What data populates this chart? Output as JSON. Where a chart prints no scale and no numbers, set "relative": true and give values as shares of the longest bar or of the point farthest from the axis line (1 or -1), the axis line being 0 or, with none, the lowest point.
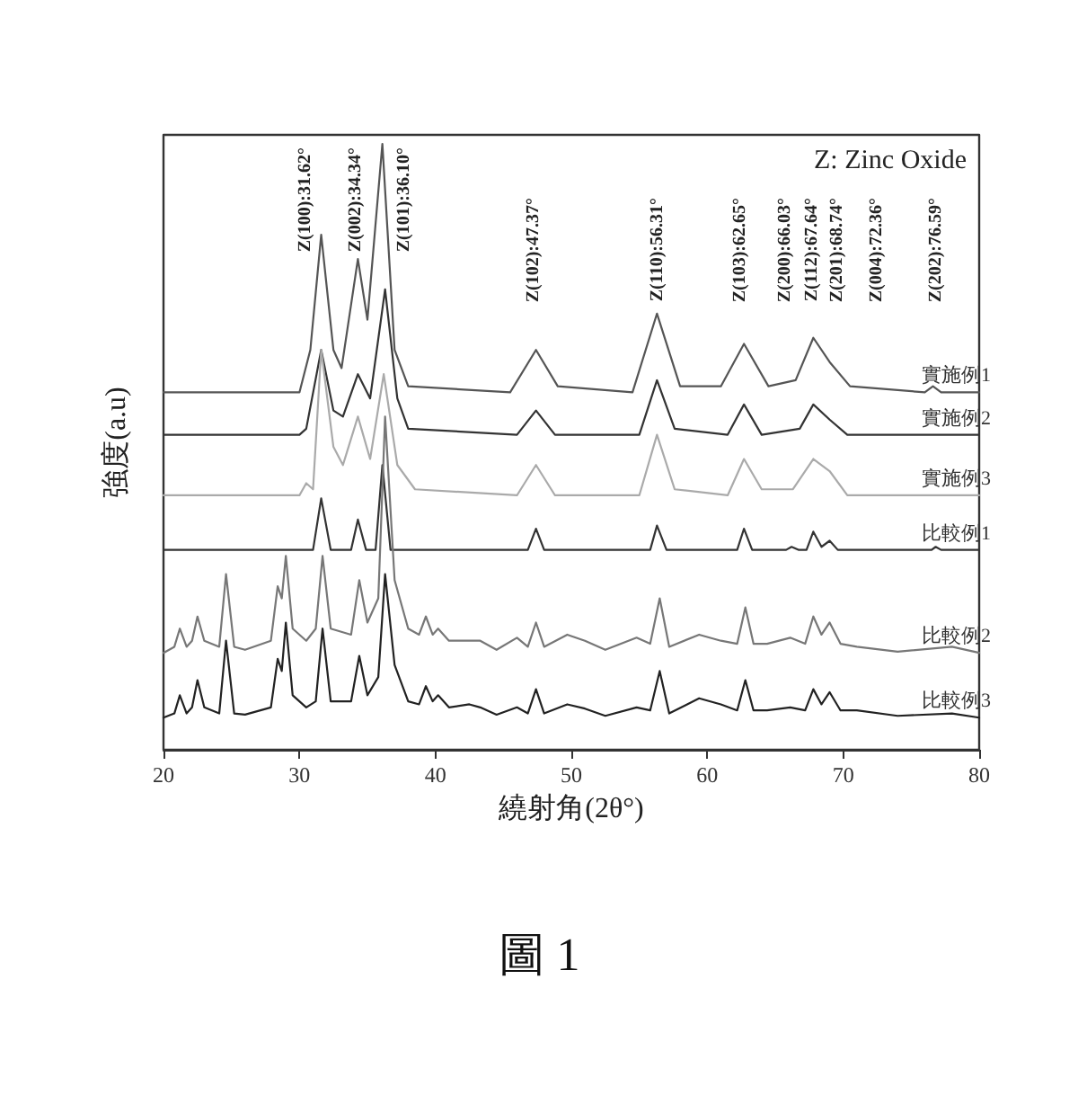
{
  "chart_data": {
    "type": "line",
    "relative": true,
    "xlabel": "繞射角(2θ°)",
    "ylabel": "強度(a.u)",
    "xlim": [
      20,
      80
    ],
    "xticks": [
      20,
      30,
      40,
      50,
      60,
      70,
      80
    ],
    "tick_labels": "x",
    "grid": false,
    "legend": false,
    "marker": "none",
    "line_style": "solid",
    "annotations": [
      "Z(100):31.62°",
      "Z(002):34.34°",
      "Z(101):36.10°",
      "Z(102):47.37°",
      "Z(110):56.31°",
      "Z(103):62.65°",
      "Z(200):66.03°",
      "Z(112):67.64°",
      "Z(201):68.74°",
      "Z(004):72.36°",
      "Z(202):76.59°",
      "Z: Zinc Oxide",
      "圖 1"
    ],
    "series": [
      {
        "name": "實施例1",
        "color": "#555555",
        "x": [
          20,
          30,
          30.8,
          31.6,
          32.5,
          33.1,
          34.3,
          35.0,
          36.1,
          37.0,
          38,
          45.5,
          47.4,
          49,
          54.5,
          56.3,
          58,
          61,
          62.7,
          64.5,
          66.5,
          67.8,
          69,
          70.5,
          76,
          76.6,
          77.2,
          80
        ],
        "values": [
          0.59,
          0.59,
          0.66,
          0.85,
          0.66,
          0.63,
          0.81,
          0.71,
          1.0,
          0.66,
          0.6,
          0.59,
          0.66,
          0.6,
          0.59,
          0.72,
          0.6,
          0.6,
          0.67,
          0.6,
          0.61,
          0.68,
          0.64,
          0.6,
          0.59,
          0.6,
          0.59,
          0.59
        ]
      },
      {
        "name": "實施例2",
        "color": "#333333",
        "x": [
          20,
          30,
          30.5,
          31.6,
          32.5,
          33.2,
          34.3,
          35.2,
          36.3,
          37.2,
          38,
          46,
          47.4,
          48.8,
          55,
          56.3,
          57.6,
          61.5,
          62.7,
          64,
          66.8,
          67.8,
          69,
          70.3,
          80
        ],
        "values": [
          0.52,
          0.52,
          0.53,
          0.66,
          0.56,
          0.55,
          0.62,
          0.58,
          0.76,
          0.58,
          0.53,
          0.52,
          0.56,
          0.52,
          0.52,
          0.61,
          0.53,
          0.52,
          0.57,
          0.52,
          0.53,
          0.57,
          0.545,
          0.52,
          0.52
        ]
      },
      {
        "name": "實施例3",
        "color": "#aaaaaa",
        "x": [
          20,
          30,
          30.5,
          31,
          31.6,
          32.5,
          33.2,
          34.3,
          35.2,
          36.2,
          37.2,
          38.5,
          46,
          47.4,
          48.8,
          55,
          56.3,
          57.6,
          61.5,
          62.7,
          64,
          66.3,
          67.8,
          69,
          70.3,
          80
        ],
        "values": [
          0.42,
          0.42,
          0.44,
          0.43,
          0.66,
          0.5,
          0.47,
          0.55,
          0.48,
          0.62,
          0.47,
          0.43,
          0.42,
          0.47,
          0.42,
          0.42,
          0.52,
          0.43,
          0.42,
          0.48,
          0.43,
          0.43,
          0.48,
          0.46,
          0.42,
          0.42
        ]
      },
      {
        "name": "比較例1",
        "color": "#333333",
        "x": [
          20,
          31,
          31.6,
          32.3,
          33.8,
          34.3,
          34.9,
          35.6,
          36.1,
          36.7,
          37.5,
          46.8,
          47.4,
          48,
          55.8,
          56.3,
          57,
          62.2,
          62.7,
          63.3,
          65.8,
          66.2,
          66.7,
          67.3,
          67.8,
          68.4,
          69,
          69.6,
          76.5,
          76.8,
          77.2,
          80
        ],
        "values": [
          0.33,
          0.33,
          0.415,
          0.33,
          0.33,
          0.38,
          0.33,
          0.33,
          0.47,
          0.33,
          0.33,
          0.33,
          0.365,
          0.33,
          0.33,
          0.37,
          0.33,
          0.33,
          0.365,
          0.33,
          0.33,
          0.335,
          0.33,
          0.33,
          0.36,
          0.335,
          0.345,
          0.33,
          0.33,
          0.335,
          0.33,
          0.33
        ]
      },
      {
        "name": "比較例2",
        "color": "#777777",
        "x": [
          20,
          20.8,
          21.2,
          21.7,
          22.1,
          22.5,
          23,
          24.1,
          24.6,
          25.2,
          26,
          27.9,
          28.4,
          28.7,
          29.0,
          29.5,
          30.5,
          31.2,
          31.7,
          32.3,
          33.8,
          34.4,
          35,
          35.8,
          36.3,
          37,
          38,
          38.8,
          39.3,
          39.8,
          40.2,
          41,
          42.5,
          43.3,
          44.5,
          46,
          46.8,
          47.4,
          48,
          49.7,
          51,
          52.5,
          54.8,
          55.8,
          56.5,
          57.2,
          59.4,
          61,
          62.2,
          62.8,
          63.4,
          64.4,
          66.1,
          67.2,
          67.8,
          68.4,
          69,
          69.8,
          71,
          74,
          78,
          80
        ],
        "values": [
          0.16,
          0.17,
          0.2,
          0.17,
          0.18,
          0.22,
          0.18,
          0.17,
          0.29,
          0.17,
          0.165,
          0.18,
          0.27,
          0.25,
          0.32,
          0.2,
          0.18,
          0.2,
          0.32,
          0.2,
          0.19,
          0.28,
          0.21,
          0.25,
          0.55,
          0.28,
          0.2,
          0.19,
          0.22,
          0.19,
          0.2,
          0.18,
          0.18,
          0.18,
          0.165,
          0.185,
          0.17,
          0.21,
          0.17,
          0.19,
          0.18,
          0.165,
          0.185,
          0.175,
          0.25,
          0.17,
          0.19,
          0.18,
          0.175,
          0.235,
          0.175,
          0.175,
          0.185,
          0.175,
          0.22,
          0.19,
          0.21,
          0.175,
          0.17,
          0.162,
          0.17,
          0.16
        ]
      },
      {
        "name": "比較例3",
        "color": "#222222",
        "x": [
          20,
          20.8,
          21.2,
          21.7,
          22.1,
          22.5,
          23,
          24.1,
          24.6,
          25.2,
          26,
          27.9,
          28.4,
          28.7,
          29.0,
          29.5,
          30.5,
          31.2,
          31.7,
          32.3,
          33.8,
          34.4,
          35,
          35.8,
          36.3,
          37,
          38,
          38.8,
          39.3,
          39.8,
          40.2,
          41,
          42.5,
          43.3,
          44.5,
          46,
          46.8,
          47.4,
          48,
          49.7,
          51,
          52.5,
          54.8,
          55.8,
          56.5,
          57.2,
          59.4,
          61,
          62.2,
          62.8,
          63.4,
          64.4,
          66.1,
          67.2,
          67.8,
          68.4,
          69,
          69.8,
          71,
          74,
          78,
          80
        ],
        "values": [
          0.053,
          0.06,
          0.09,
          0.06,
          0.07,
          0.115,
          0.07,
          0.06,
          0.18,
          0.06,
          0.058,
          0.07,
          0.15,
          0.13,
          0.21,
          0.09,
          0.07,
          0.08,
          0.2,
          0.08,
          0.08,
          0.155,
          0.09,
          0.12,
          0.29,
          0.14,
          0.08,
          0.075,
          0.105,
          0.08,
          0.09,
          0.07,
          0.075,
          0.07,
          0.058,
          0.07,
          0.06,
          0.1,
          0.06,
          0.075,
          0.068,
          0.056,
          0.07,
          0.065,
          0.13,
          0.06,
          0.085,
          0.075,
          0.065,
          0.115,
          0.065,
          0.065,
          0.07,
          0.065,
          0.1,
          0.075,
          0.095,
          0.065,
          0.065,
          0.056,
          0.06,
          0.053
        ]
      }
    ]
  }
}
